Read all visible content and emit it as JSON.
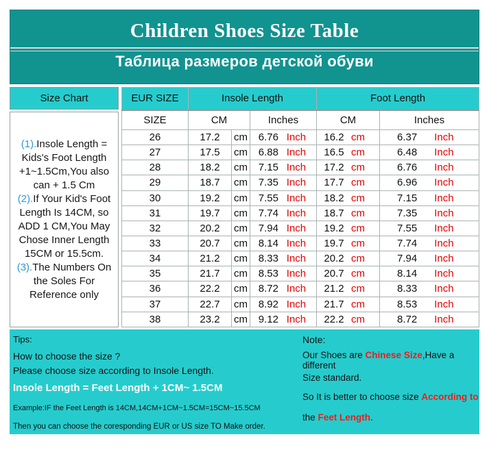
{
  "banner": {
    "title": "Children Shoes Size Table",
    "subtitle": "Таблица размеров детской обуви"
  },
  "colors": {
    "banner_teal": "#119390",
    "cyan": "#26cccd",
    "unit_red": "#e60000",
    "highlight_red": "#ee1c1c",
    "note_number_blue": "#3399cc"
  },
  "table": {
    "headers": {
      "size_chart": "Size Chart",
      "eur_size": "EUR SIZE",
      "insole_length": "Insole Length",
      "foot_length": "Foot Length",
      "size": "SIZE",
      "cm": "CM",
      "inches": "Inches"
    },
    "units": {
      "cm": "cm",
      "inch": "Inch"
    },
    "notes": [
      {
        "num": "(1).",
        "text": "Insole Length = Kids's Foot Length +1~1.5Cm,You also can + 1.5 Cm"
      },
      {
        "num": "(2).",
        "text": "If Your Kid's Foot Length Is 14CM,  so ADD 1 CM,You May Chose Inner Length 15CM or 15.5cm."
      },
      {
        "num": "(3).",
        "text": "The Numbers On the Soles For Reference only"
      }
    ],
    "rows": [
      {
        "size": "26",
        "insole_cm": "17.2",
        "insole_in": "6.76",
        "foot_cm": "16.2",
        "foot_in": "6.37"
      },
      {
        "size": "27",
        "insole_cm": "17.5",
        "insole_in": "6.88",
        "foot_cm": "16.5",
        "foot_in": "6.48"
      },
      {
        "size": "28",
        "insole_cm": "18.2",
        "insole_in": "7.15",
        "foot_cm": "17.2",
        "foot_in": "6.76"
      },
      {
        "size": "29",
        "insole_cm": "18.7",
        "insole_in": "7.35",
        "foot_cm": "17.7",
        "foot_in": "6.96"
      },
      {
        "size": "30",
        "insole_cm": "19.2",
        "insole_in": "7.55",
        "foot_cm": "18.2",
        "foot_in": "7.15"
      },
      {
        "size": "31",
        "insole_cm": "19.7",
        "insole_in": "7.74",
        "foot_cm": "18.7",
        "foot_in": "7.35"
      },
      {
        "size": "32",
        "insole_cm": "20.2",
        "insole_in": "7.94",
        "foot_cm": "19.2",
        "foot_in": "7.55"
      },
      {
        "size": "33",
        "insole_cm": "20.7",
        "insole_in": "8.14",
        "foot_cm": "19.7",
        "foot_in": "7.74"
      },
      {
        "size": "34",
        "insole_cm": "21.2",
        "insole_in": "8.33",
        "foot_cm": "20.2",
        "foot_in": "7.94"
      },
      {
        "size": "35",
        "insole_cm": "21.7",
        "insole_in": "8.53",
        "foot_cm": "20.7",
        "foot_in": "8.14"
      },
      {
        "size": "36",
        "insole_cm": "22.2",
        "insole_in": "8.72",
        "foot_cm": "21.2",
        "foot_in": "8.33"
      },
      {
        "size": "37",
        "insole_cm": "22.7",
        "insole_in": "8.92",
        "foot_cm": "21.7",
        "foot_in": "8.53"
      },
      {
        "size": "38",
        "insole_cm": "23.2",
        "insole_in": "9.12",
        "foot_cm": "22.2",
        "foot_in": "8.72"
      }
    ]
  },
  "tips": {
    "title": "Tips:",
    "line1": "How to choose the size ?",
    "line2": "Please choose size according to Insole Length.",
    "formula": "Insole Length = Feet Length + 1CM~ 1.5CM",
    "example": "Example:IF the Feet Length is 14CM,14CM+1CM~1.5CM=15CM~15.5CM",
    "conclusion": "Then you can choose the coresponding EUR or US size TO Make order."
  },
  "note": {
    "title": "Note:",
    "lines": [
      [
        {
          "t": "Our Shoes are "
        },
        {
          "t": "Chinese Size",
          "red": true
        },
        {
          "t": ",Have a different"
        }
      ],
      [
        {
          "t": "Size standard."
        }
      ],
      [
        {
          "t": "So It is better to choose size "
        },
        {
          "t": "According to",
          "red": true
        }
      ],
      [
        {
          "t": "the "
        },
        {
          "t": "Feet Length",
          "red": true
        },
        {
          "t": "."
        }
      ]
    ]
  },
  "chart_data": {
    "type": "table",
    "title": "Children Shoes Size Table",
    "subtitle": "Таблица размеров детской обуви",
    "columns": [
      "EUR SIZE",
      "Insole Length CM",
      "Insole Length Inches",
      "Foot Length CM",
      "Foot Length Inches"
    ],
    "rows": [
      [
        26,
        17.2,
        6.76,
        16.2,
        6.37
      ],
      [
        27,
        17.5,
        6.88,
        16.5,
        6.48
      ],
      [
        28,
        18.2,
        7.15,
        17.2,
        6.76
      ],
      [
        29,
        18.7,
        7.35,
        17.7,
        6.96
      ],
      [
        30,
        19.2,
        7.55,
        18.2,
        7.15
      ],
      [
        31,
        19.7,
        7.74,
        18.7,
        7.35
      ],
      [
        32,
        20.2,
        7.94,
        19.2,
        7.55
      ],
      [
        33,
        20.7,
        8.14,
        19.7,
        7.74
      ],
      [
        34,
        21.2,
        8.33,
        20.2,
        7.94
      ],
      [
        35,
        21.7,
        8.53,
        20.7,
        8.14
      ],
      [
        36,
        22.2,
        8.72,
        21.2,
        8.33
      ],
      [
        37,
        22.7,
        8.92,
        21.7,
        8.53
      ],
      [
        38,
        23.2,
        9.12,
        22.2,
        8.72
      ]
    ]
  }
}
